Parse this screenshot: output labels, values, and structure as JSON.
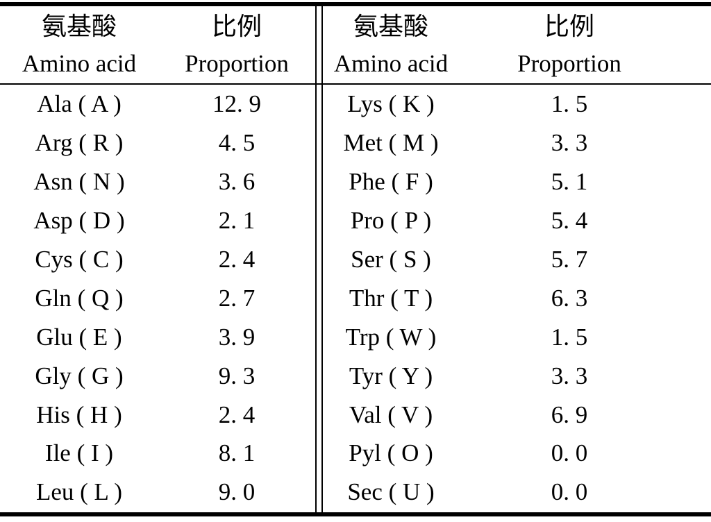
{
  "table": {
    "header": {
      "amino_acid_zh": "氨基酸",
      "amino_acid_en": "Amino acid",
      "proportion_zh": "比例",
      "proportion_en": "Proportion"
    },
    "left_rows": [
      {
        "name": "Ala ( A )",
        "value": "12. 9"
      },
      {
        "name": "Arg ( R )",
        "value": "4. 5"
      },
      {
        "name": "Asn ( N )",
        "value": "3. 6"
      },
      {
        "name": "Asp ( D )",
        "value": "2. 1"
      },
      {
        "name": "Cys ( C )",
        "value": "2. 4"
      },
      {
        "name": "Gln ( Q )",
        "value": "2. 7"
      },
      {
        "name": "Glu ( E )",
        "value": "3. 9"
      },
      {
        "name": "Gly ( G )",
        "value": "9. 3"
      },
      {
        "name": "His ( H )",
        "value": "2. 4"
      },
      {
        "name": "Ile ( I )",
        "value": "8. 1"
      },
      {
        "name": "Leu ( L )",
        "value": "9. 0"
      }
    ],
    "right_rows": [
      {
        "name": "Lys ( K )",
        "value": "1. 5"
      },
      {
        "name": "Met ( M )",
        "value": "3. 3"
      },
      {
        "name": "Phe ( F )",
        "value": "5. 1"
      },
      {
        "name": "Pro ( P )",
        "value": "5. 4"
      },
      {
        "name": "Ser ( S )",
        "value": "5. 7"
      },
      {
        "name": "Thr ( T )",
        "value": "6. 3"
      },
      {
        "name": "Trp ( W )",
        "value": "1. 5"
      },
      {
        "name": "Tyr ( Y )",
        "value": "3. 3"
      },
      {
        "name": "Val ( V )",
        "value": "6. 9"
      },
      {
        "name": "Pyl ( O )",
        "value": "0. 0"
      },
      {
        "name": "Sec ( U )",
        "value": "0. 0"
      }
    ],
    "colors": {
      "text": "#000000",
      "background": "#ffffff",
      "rule": "#000000"
    }
  }
}
